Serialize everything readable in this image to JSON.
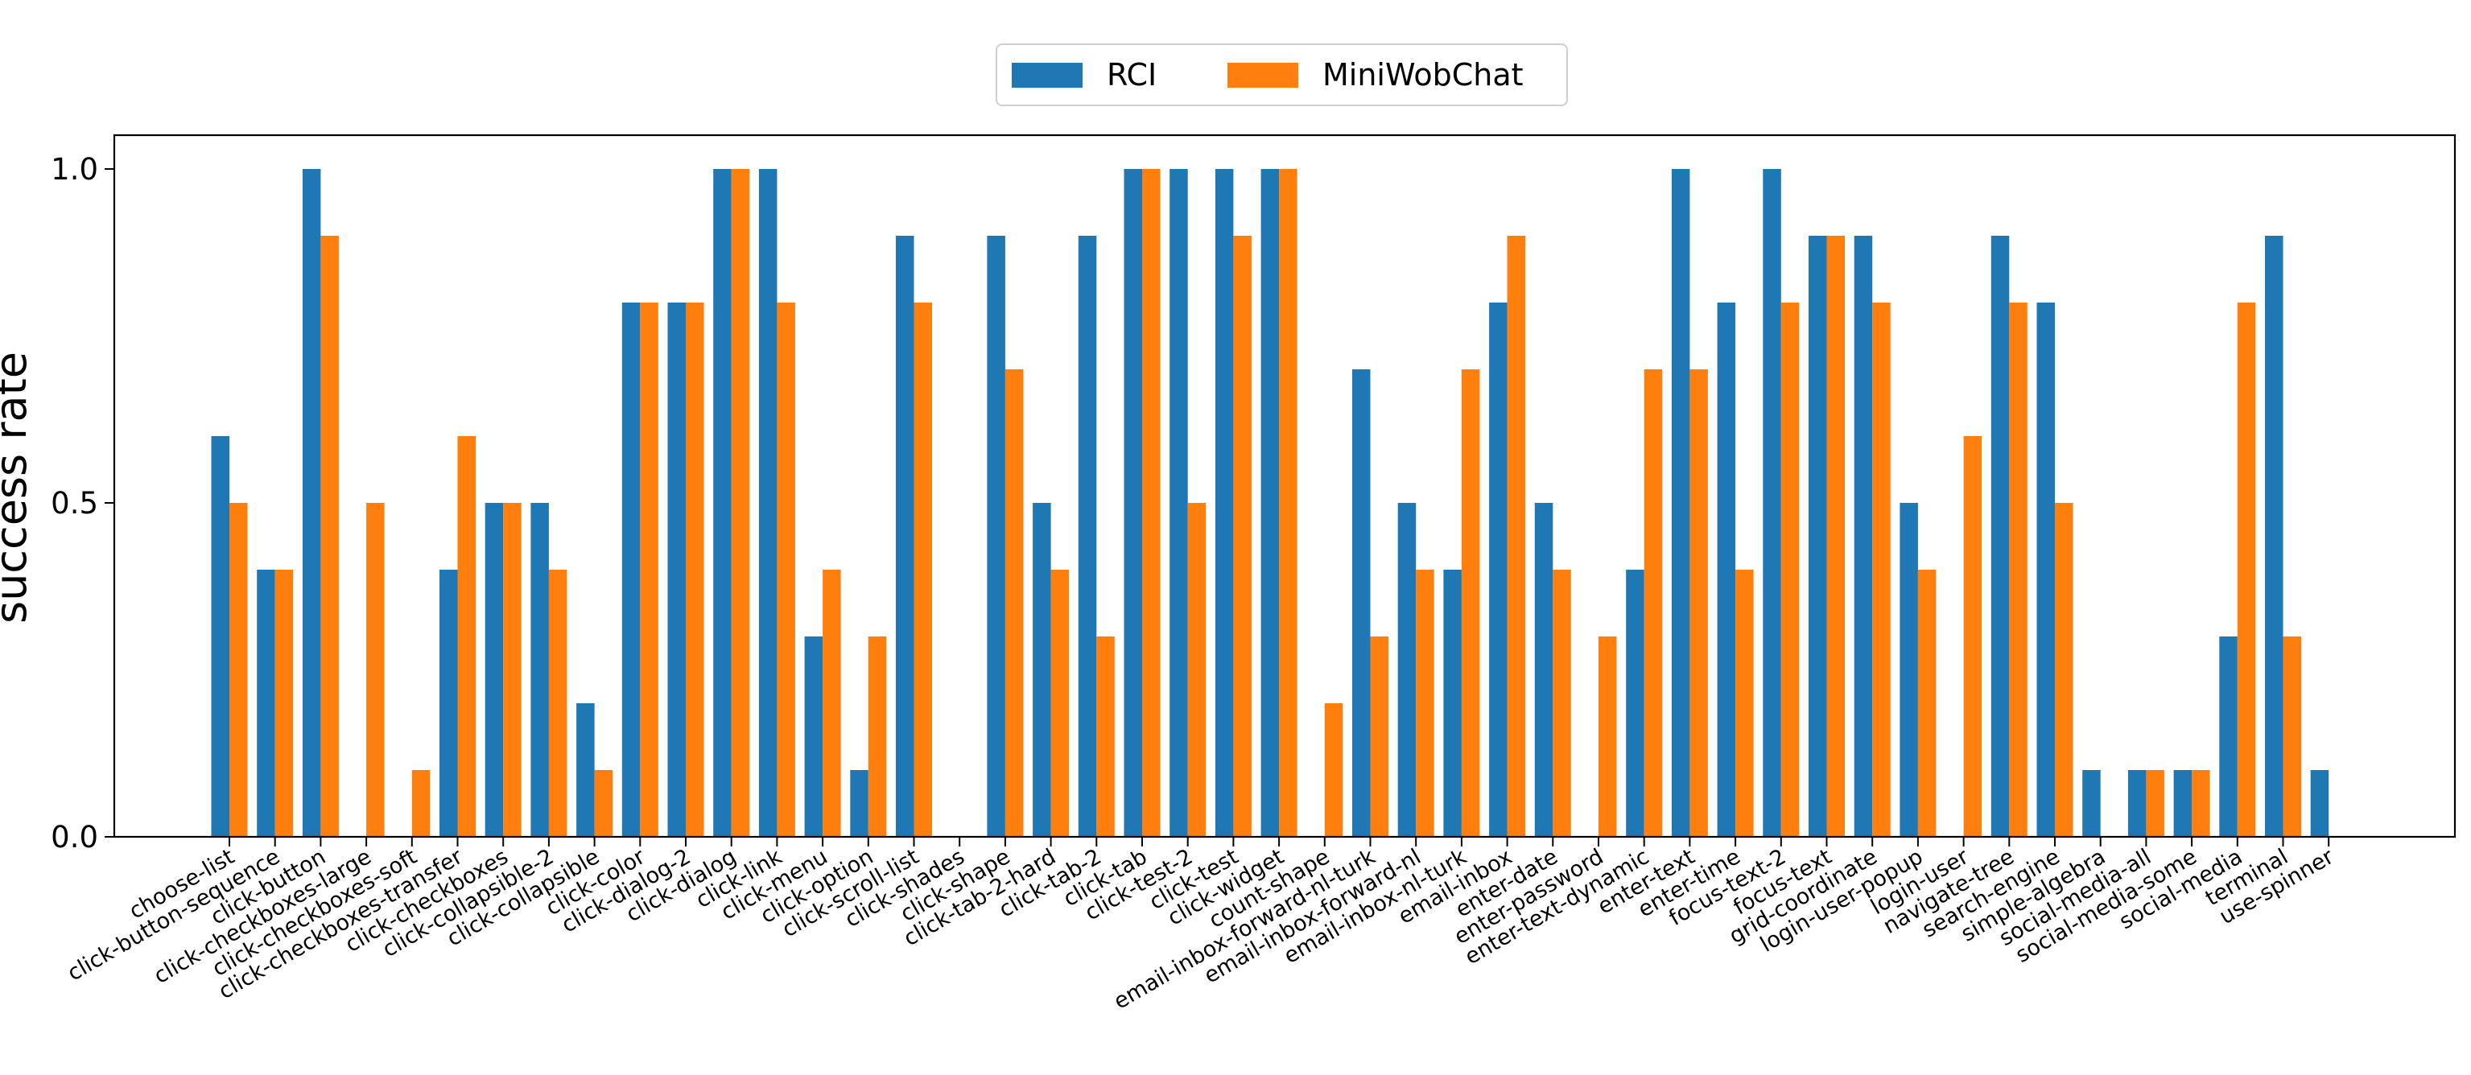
{
  "chart_data": {
    "type": "bar",
    "title": "",
    "xlabel": "",
    "ylabel": "success rate",
    "ylim": [
      0,
      1.05
    ],
    "yticks": [
      "0.0",
      "0.5",
      "1.0"
    ],
    "grid": false,
    "legend_position": "top-center",
    "categories": [
      "choose-list",
      "click-button-sequence",
      "click-button",
      "click-checkboxes-large",
      "click-checkboxes-soft",
      "click-checkboxes-transfer",
      "click-checkboxes",
      "click-collapsible-2",
      "click-collapsible",
      "click-color",
      "click-dialog-2",
      "click-dialog",
      "click-link",
      "click-menu",
      "click-option",
      "click-scroll-list",
      "click-shades",
      "click-shape",
      "click-tab-2-hard",
      "click-tab-2",
      "click-tab",
      "click-test-2",
      "click-test",
      "click-widget",
      "count-shape",
      "email-inbox-forward-nl-turk",
      "email-inbox-forward-nl",
      "email-inbox-nl-turk",
      "email-inbox",
      "enter-date",
      "enter-password",
      "enter-text-dynamic",
      "enter-text",
      "enter-time",
      "focus-text-2",
      "focus-text",
      "grid-coordinate",
      "login-user-popup",
      "login-user",
      "navigate-tree",
      "search-engine",
      "simple-algebra",
      "social-media-all",
      "social-media-some",
      "social-media",
      "terminal",
      "use-spinner"
    ],
    "series": [
      {
        "name": "RCI",
        "color": "#1f77b4",
        "values": [
          0.6,
          0.4,
          1.0,
          0.0,
          0.0,
          0.4,
          0.5,
          0.5,
          0.2,
          0.8,
          0.8,
          1.0,
          1.0,
          0.3,
          0.1,
          0.9,
          0.0,
          0.9,
          0.5,
          0.9,
          1.0,
          1.0,
          1.0,
          1.0,
          0.0,
          0.7,
          0.5,
          0.4,
          0.8,
          0.5,
          0.0,
          0.4,
          1.0,
          0.8,
          1.0,
          0.9,
          0.9,
          0.5,
          0.0,
          0.9,
          0.8,
          0.1,
          0.1,
          0.1,
          0.3,
          0.9,
          0.1
        ]
      },
      {
        "name": "MiniWobChat",
        "color": "#ff7f0e",
        "values": [
          0.5,
          0.4,
          0.9,
          0.5,
          0.1,
          0.6,
          0.5,
          0.4,
          0.1,
          0.8,
          0.8,
          1.0,
          0.8,
          0.4,
          0.3,
          0.8,
          0.0,
          0.7,
          0.4,
          0.3,
          1.0,
          0.5,
          0.9,
          1.0,
          0.2,
          0.3,
          0.4,
          0.7,
          0.9,
          0.4,
          0.3,
          0.7,
          0.7,
          0.4,
          0.8,
          0.9,
          0.8,
          0.4,
          0.6,
          0.8,
          0.5,
          0.0,
          0.1,
          0.1,
          0.8,
          0.3,
          0.0
        ]
      }
    ]
  }
}
